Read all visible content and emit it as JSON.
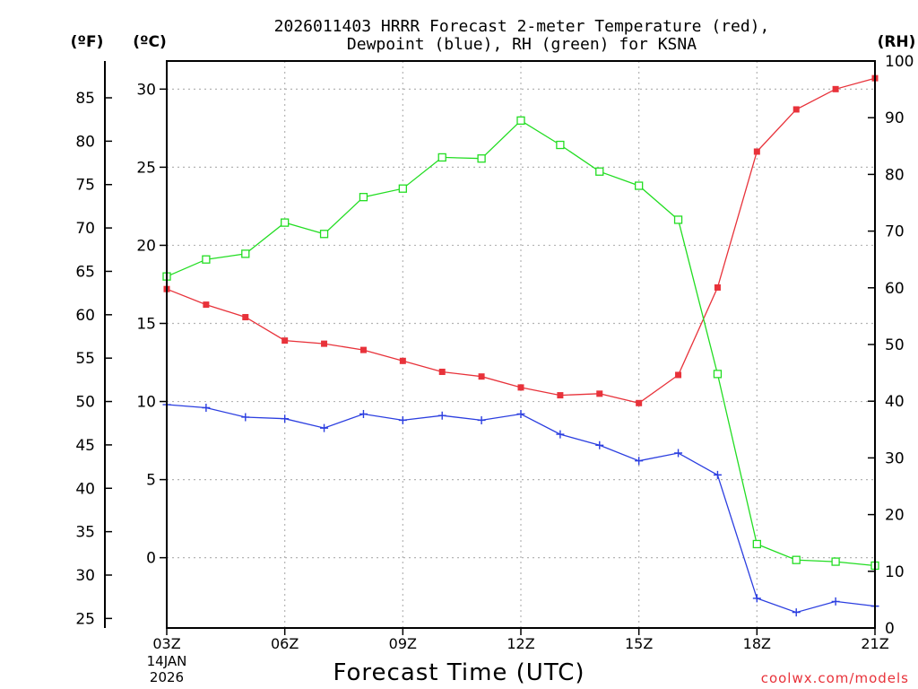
{
  "chart_data": {
    "type": "line",
    "title_line1": "2026011403 HRRR Forecast 2-meter Temperature (red),",
    "title_line2": "Dewpoint (blue), RH (green) for KSNA",
    "xlabel": "Forecast Time (UTC)",
    "units": {
      "fahrenheit": "(ºF)",
      "celsius": "(ºC)",
      "rh": "(RH)"
    },
    "credit": "coolwx.com/models",
    "x_hours": [
      3,
      4,
      5,
      6,
      7,
      8,
      9,
      10,
      11,
      12,
      13,
      14,
      15,
      16,
      17,
      18,
      19,
      20,
      21
    ],
    "x_ticks": [
      {
        "hour": 3,
        "label": "03Z"
      },
      {
        "hour": 6,
        "label": "06Z"
      },
      {
        "hour": 9,
        "label": "09Z"
      },
      {
        "hour": 12,
        "label": "12Z"
      },
      {
        "hour": 15,
        "label": "15Z"
      },
      {
        "hour": 18,
        "label": "18Z"
      },
      {
        "hour": 21,
        "label": "21Z"
      }
    ],
    "x_date_line1": "14JAN",
    "x_date_line2": "2026",
    "xlim": [
      3,
      21
    ],
    "ylim_celsius": [
      -4.5,
      31.8
    ],
    "ylim_rh": [
      0,
      100
    ],
    "celsius_ticks": [
      0,
      5,
      10,
      15,
      20,
      25,
      30
    ],
    "fahrenheit_ticks": [
      25,
      30,
      35,
      40,
      45,
      50,
      55,
      60,
      65,
      70,
      75,
      80,
      85
    ],
    "rh_ticks": [
      0,
      10,
      20,
      30,
      40,
      50,
      60,
      70,
      80,
      90,
      100
    ],
    "grid": true,
    "series": [
      {
        "name": "Temperature",
        "axis": "celsius",
        "color": "#e8323a",
        "marker": "filled-square",
        "values": [
          17.2,
          16.2,
          15.4,
          13.9,
          13.7,
          13.3,
          12.6,
          11.9,
          11.6,
          10.9,
          10.4,
          10.5,
          9.9,
          11.7,
          17.3,
          26.0,
          28.7,
          30.0,
          30.7
        ]
      },
      {
        "name": "Dewpoint",
        "axis": "celsius",
        "color": "#2b3ee0",
        "marker": "plus",
        "values": [
          9.8,
          9.6,
          9.0,
          8.9,
          8.3,
          9.2,
          8.8,
          9.1,
          8.8,
          9.2,
          7.9,
          7.2,
          6.2,
          6.7,
          5.3,
          -2.6,
          -3.5,
          -2.8,
          -3.1
        ]
      },
      {
        "name": "RH",
        "axis": "rh",
        "color": "#22dd22",
        "marker": "open-square",
        "values": [
          62,
          65,
          66,
          71.5,
          69.5,
          76,
          77.5,
          83,
          82.8,
          89.5,
          85.2,
          80.5,
          78,
          72,
          44.8,
          14.8,
          12,
          11.7,
          11
        ]
      }
    ]
  }
}
